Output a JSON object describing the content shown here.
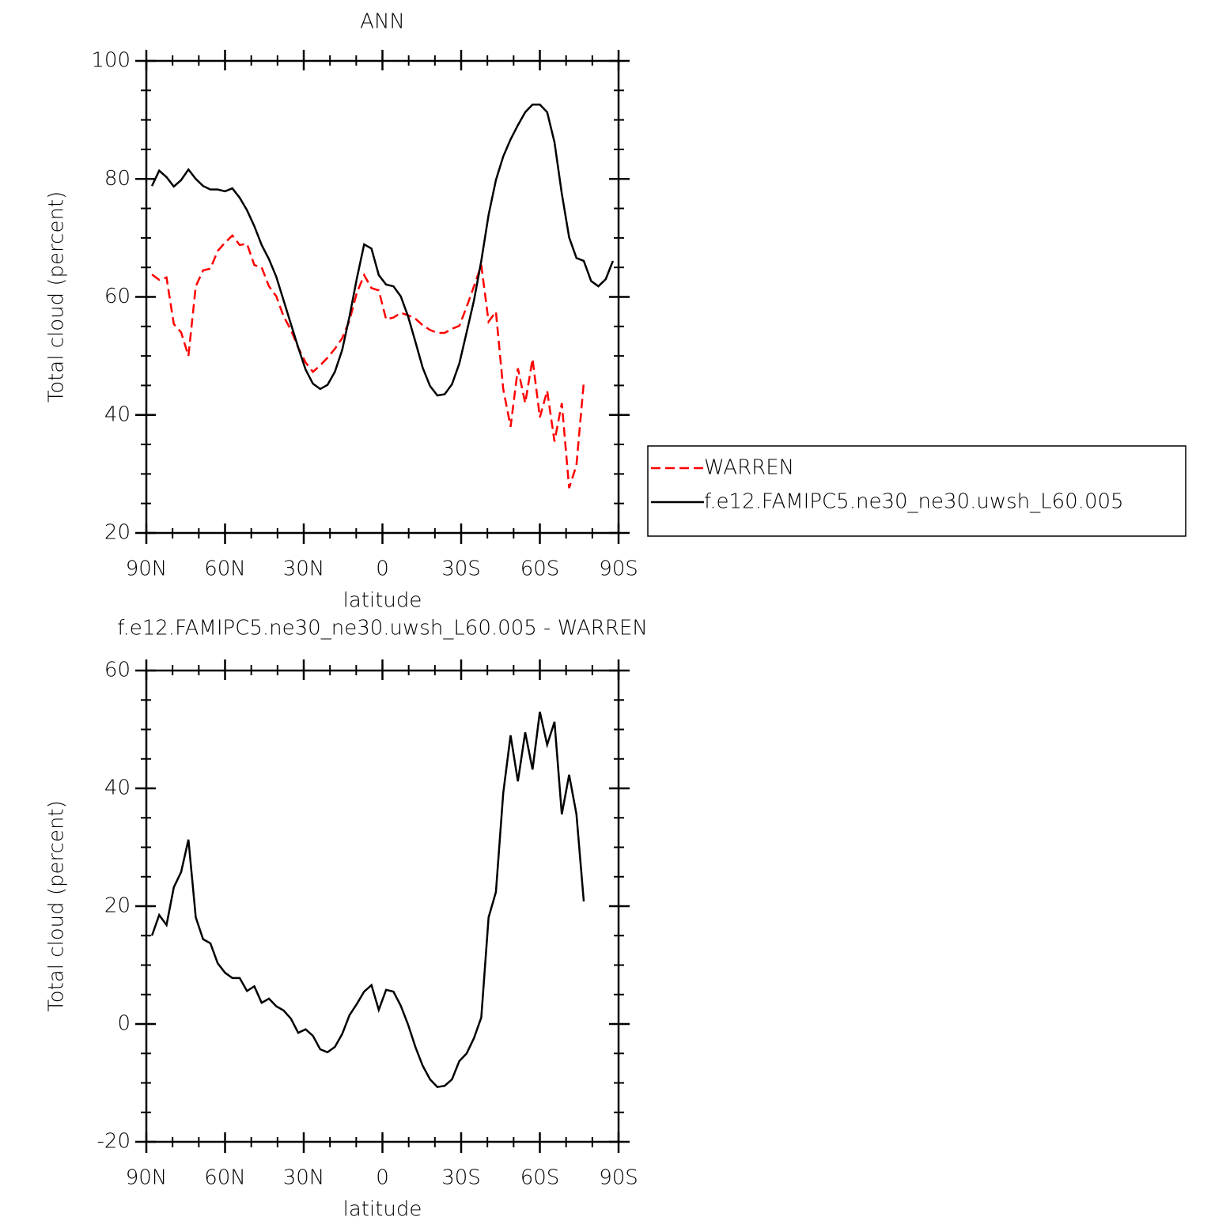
{
  "chart_data": [
    {
      "type": "line",
      "title": "ANN",
      "xlabel": "latitude",
      "ylabel": "Total cloud (percent)",
      "x": [
        87.86,
        85.1,
        82.31,
        79.53,
        76.74,
        73.95,
        71.16,
        68.37,
        65.58,
        62.79,
        60.0,
        57.21,
        54.42,
        51.63,
        48.84,
        46.04,
        43.25,
        40.46,
        37.67,
        34.88,
        32.09,
        29.3,
        26.51,
        23.72,
        20.93,
        18.14,
        15.35,
        12.56,
        9.77,
        6.98,
        4.19,
        1.4,
        -1.4,
        -4.19,
        -6.98,
        -9.77,
        -12.56,
        -15.35,
        -18.14,
        -20.93,
        -23.72,
        -26.51,
        -29.3,
        -32.09,
        -34.88,
        -37.67,
        -40.46,
        -43.25,
        -46.04,
        -48.84,
        -51.63,
        -54.42,
        -57.21,
        -60.0,
        -62.79,
        -65.58,
        -68.37,
        -71.16,
        -73.95,
        -76.74,
        -79.53,
        -82.31,
        -85.1,
        -87.86
      ],
      "series": [
        {
          "name": "WARREN",
          "color": "#ff0000",
          "linestyle": "dashed",
          "values": [
            63.8,
            62.9,
            63.3,
            55.4,
            54.0,
            50.0,
            61.8,
            64.5,
            64.8,
            67.8,
            69.2,
            70.4,
            68.8,
            69.0,
            65.4,
            65.0,
            61.8,
            60.1,
            56.7,
            54.4,
            51.4,
            48.9,
            47.3,
            48.4,
            49.7,
            51.2,
            53.0,
            56.0,
            60.7,
            63.7,
            61.5,
            61.1,
            56.2,
            56.5,
            57.3,
            56.9,
            56.3,
            55.2,
            54.4,
            53.9,
            53.9,
            54.6,
            55.1,
            58.3,
            61.8,
            65.4,
            55.8,
            57.5,
            44.4,
            38.0,
            47.9,
            42.0,
            49.5,
            39.6,
            44.1,
            35.5,
            42.0,
            27.6,
            31.5,
            45.5,
            null,
            null,
            null,
            null
          ]
        },
        {
          "name": "f.e12.FAMIPC5.ne30_ne30.uwsh_L60.005",
          "color": "#000000",
          "linestyle": "solid",
          "values": [
            78.8,
            81.4,
            80.3,
            78.7,
            79.8,
            81.6,
            80.0,
            78.8,
            78.2,
            78.2,
            77.9,
            78.4,
            76.8,
            74.7,
            72.0,
            68.8,
            66.4,
            63.4,
            59.4,
            55.4,
            51.4,
            47.7,
            45.3,
            44.4,
            45.1,
            47.3,
            51.0,
            56.7,
            63.1,
            68.9,
            68.2,
            63.7,
            62.1,
            61.8,
            60.1,
            56.7,
            52.4,
            48.0,
            44.9,
            43.3,
            43.5,
            45.2,
            48.7,
            54.0,
            59.4,
            66.1,
            73.9,
            79.8,
            83.8,
            86.7,
            89.1,
            91.3,
            92.6,
            92.6,
            91.3,
            86.2,
            77.5,
            70.1,
            66.6,
            66.1,
            62.7,
            61.8,
            63.0,
            66.1
          ]
        }
      ],
      "xlim": [
        90,
        -90
      ],
      "xticks": [
        {
          "value": 90,
          "label": "90N"
        },
        {
          "value": 60,
          "label": "60N"
        },
        {
          "value": 30,
          "label": "30N"
        },
        0,
        {
          "value": -30,
          "label": "30S"
        },
        {
          "value": -60,
          "label": "60S"
        },
        {
          "value": -90,
          "label": "90S"
        }
      ],
      "ylim": [
        20,
        100
      ],
      "yticks": [
        20,
        40,
        60,
        80,
        100
      ],
      "legend": "right"
    },
    {
      "type": "line",
      "title": "f.e12.FAMIPC5.ne30_ne30.uwsh_L60.005 - WARREN",
      "xlabel": "latitude",
      "ylabel": "Total cloud (percent)",
      "x": [
        87.86,
        85.1,
        82.31,
        79.53,
        76.74,
        73.95,
        71.16,
        68.37,
        65.58,
        62.79,
        60.0,
        57.21,
        54.42,
        51.63,
        48.84,
        46.04,
        43.25,
        40.46,
        37.67,
        34.88,
        32.09,
        29.3,
        26.51,
        23.72,
        20.93,
        18.14,
        15.35,
        12.56,
        9.77,
        6.98,
        4.19,
        1.4,
        -1.4,
        -4.19,
        -6.98,
        -9.77,
        -12.56,
        -15.35,
        -18.14,
        -20.93,
        -23.72,
        -26.51,
        -29.3,
        -32.09,
        -34.88,
        -37.67,
        -40.46,
        -43.25,
        -46.04,
        -48.84,
        -51.63,
        -54.42,
        -57.21,
        -60.0,
        -62.79,
        -65.58,
        -68.37,
        -71.16,
        -73.95,
        -76.74,
        -79.53,
        -82.31,
        -85.1,
        -87.86
      ],
      "series": [
        {
          "color": "#000000",
          "linestyle": "solid",
          "values": [
            15.0,
            18.5,
            16.8,
            23.2,
            25.8,
            31.3,
            18.1,
            14.4,
            13.7,
            10.3,
            8.7,
            7.8,
            7.8,
            5.6,
            6.4,
            3.6,
            4.3,
            3.0,
            2.3,
            0.9,
            -1.5,
            -0.9,
            -2.0,
            -4.3,
            -4.8,
            -3.9,
            -1.7,
            1.5,
            3.4,
            5.5,
            6.6,
            2.4,
            5.8,
            5.5,
            3.1,
            -0.1,
            -3.9,
            -7.1,
            -9.4,
            -10.7,
            -10.5,
            -9.4,
            -6.3,
            -5.0,
            -2.4,
            1.1,
            18.1,
            22.4,
            39.2,
            49.0,
            41.2,
            49.5,
            43.2,
            53.0,
            47.4,
            51.3,
            35.6,
            42.3,
            35.6,
            20.8,
            null,
            null,
            null,
            null
          ]
        }
      ],
      "xlim": [
        90,
        -90
      ],
      "xticks": [
        {
          "value": 90,
          "label": "90N"
        },
        {
          "value": 60,
          "label": "60N"
        },
        {
          "value": 30,
          "label": "30N"
        },
        0,
        {
          "value": -30,
          "label": "30S"
        },
        {
          "value": -60,
          "label": "60S"
        },
        {
          "value": -90,
          "label": "90S"
        }
      ],
      "ylim": [
        -20,
        60
      ],
      "yticks": [
        -20,
        0,
        20,
        40,
        60
      ]
    }
  ]
}
